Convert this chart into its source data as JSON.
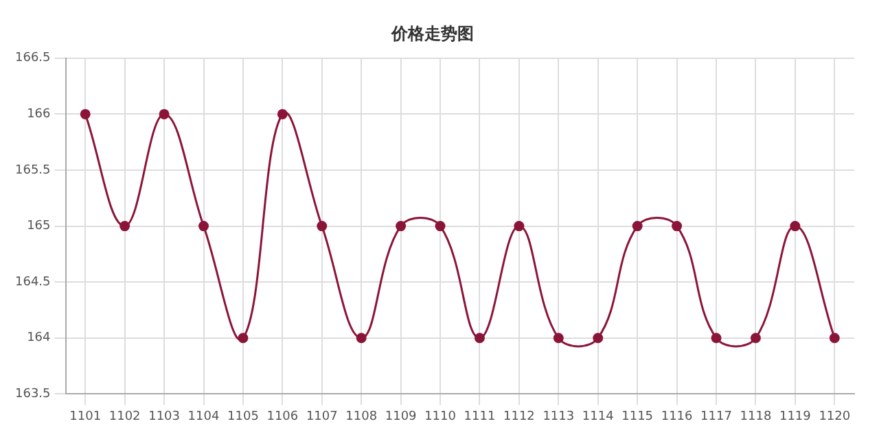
{
  "chart_data": {
    "type": "line",
    "title": "价格走势图",
    "categories": [
      "1101",
      "1102",
      "1103",
      "1104",
      "1105",
      "1106",
      "1107",
      "1108",
      "1109",
      "1110",
      "1111",
      "1112",
      "1113",
      "1114",
      "1115",
      "1116",
      "1117",
      "1118",
      "1119",
      "1120"
    ],
    "series": [
      {
        "color": "#8b1538",
        "values": [
          166,
          165,
          166,
          165,
          164,
          166,
          165,
          164,
          165,
          165,
          164,
          165,
          164,
          164,
          165,
          165,
          164,
          164,
          165,
          164
        ]
      }
    ],
    "ylim": [
      163.5,
      166.5
    ],
    "yticks": [
      163.5,
      164,
      164.5,
      165,
      165.5,
      166,
      166.5
    ],
    "grid": true,
    "marker": "circle",
    "legend": false
  }
}
